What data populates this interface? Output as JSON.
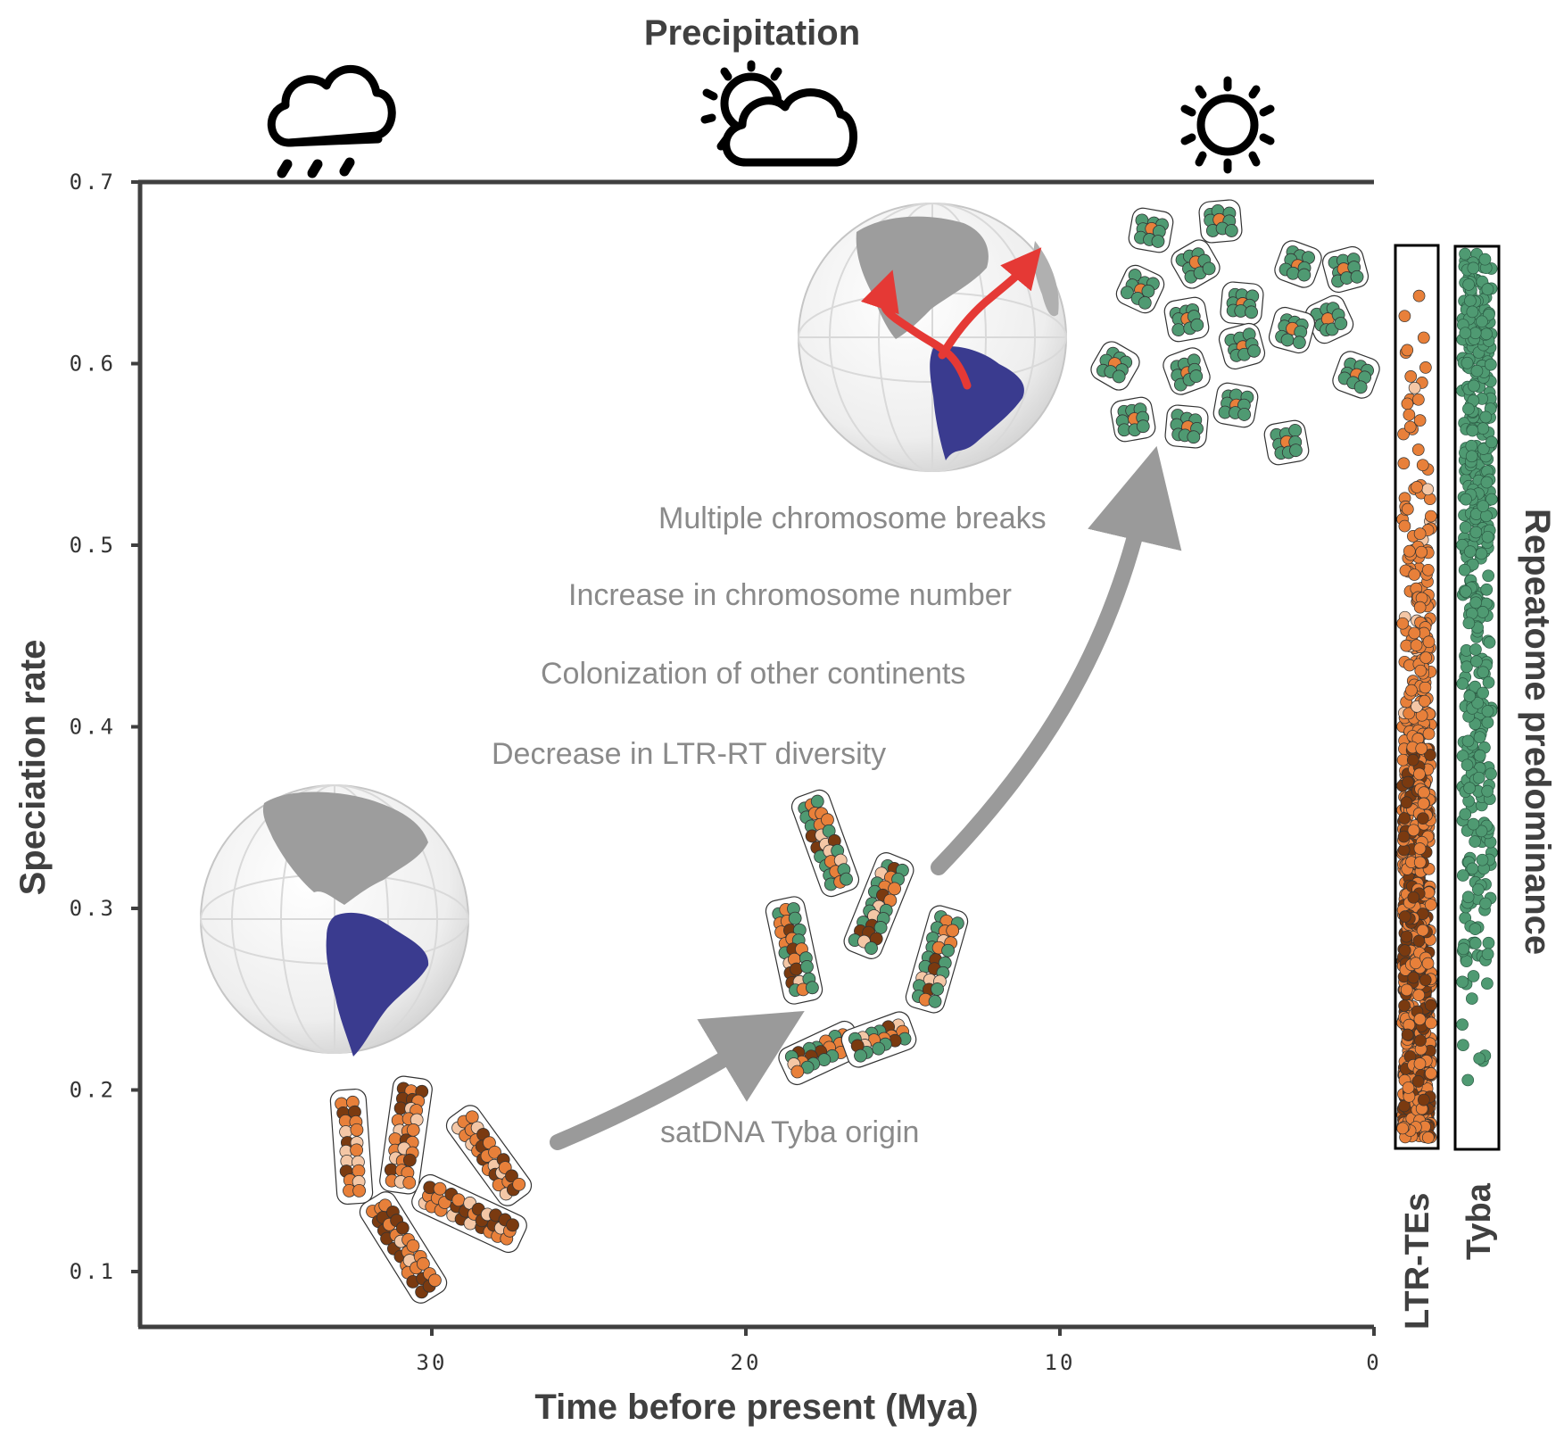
{
  "header": {
    "title": "Precipitation"
  },
  "axes": {
    "y_label": "Speciation rate",
    "x_label": "Time before present (Mya)",
    "y_ticks": [
      "0.1",
      "0.2",
      "0.3",
      "0.4",
      "0.5",
      "0.6",
      "0.7"
    ],
    "x_ticks": [
      "30",
      "20",
      "10",
      "0"
    ],
    "x_range_mya": [
      39.3,
      0
    ],
    "y_range": [
      0.07,
      0.7
    ]
  },
  "weather": {
    "icons": [
      {
        "name": "rain-cloud-icon",
        "time_mya": 33.5
      },
      {
        "name": "sun-behind-cloud-icon",
        "time_mya": 19.5
      },
      {
        "name": "sun-icon",
        "time_mya": 4.5
      }
    ]
  },
  "annotations": {
    "origin": "satDNA Tyba origin",
    "events": [
      "Multiple chromosome breaks",
      "Increase in chromosome number",
      "Colonization of other continents",
      "Decrease in LTR-RT diversity"
    ]
  },
  "repeatome": {
    "title": "Repeatome predominance",
    "bars": [
      {
        "label": "LTR-TEs",
        "color": "#e8803a"
      },
      {
        "label": "Tyba",
        "color": "#4f9a72"
      }
    ]
  },
  "colors": {
    "axis": "#404040",
    "ltr_orange": "#e8803a",
    "ltr_dark": "#7a3a10",
    "ltr_light": "#f4c7a6",
    "tyba_green": "#4f9a72",
    "south_america": "#3a3b8f",
    "globe_land": "#9d9d9d",
    "arrow_red": "#e53935",
    "arrow_grey": "#9a9a9a"
  }
}
